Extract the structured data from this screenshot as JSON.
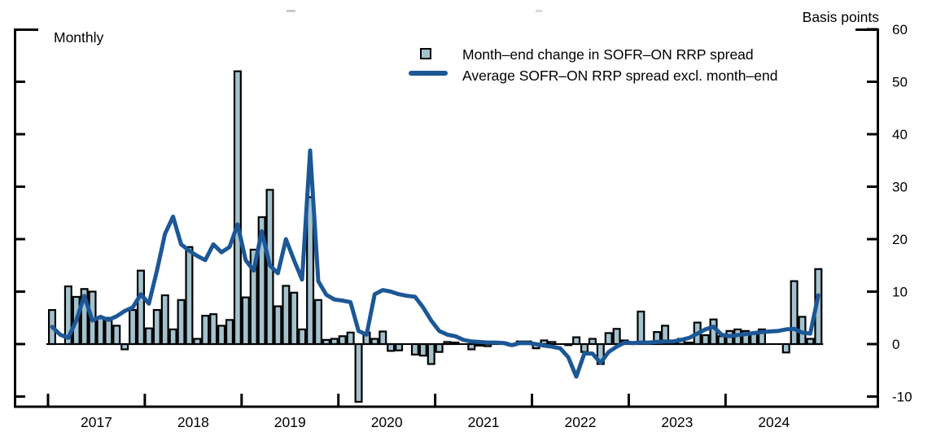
{
  "header": {
    "frequency_label": "Monthly",
    "axis_unit_label": "Basis points"
  },
  "legend": {
    "items": [
      {
        "marker": "bar-swatch",
        "label": "Month–end change in SOFR–ON RRP spread"
      },
      {
        "marker": "line-swatch",
        "label": "Average SOFR–ON RRP spread excl. month–end"
      }
    ]
  },
  "colors": {
    "bar_fill": "#a3c2ce",
    "outline": "#000000",
    "line": "#1c5796",
    "text": "#000000"
  },
  "chart_data": {
    "type": "bar+line",
    "x_unit": "month",
    "x_range": {
      "start": "2017-01",
      "end": "2024-12"
    },
    "x_tick_years": [
      "2017",
      "2018",
      "2019",
      "2020",
      "2021",
      "2022",
      "2023",
      "2024"
    ],
    "ylabel": "Basis points",
    "ylim": [
      -10,
      60
    ],
    "y_ticks": [
      60,
      50,
      40,
      30,
      20,
      10,
      0,
      -10
    ],
    "grid": false,
    "legend_position": "top-center",
    "series": [
      {
        "name": "Month–end change in SOFR–ON RRP spread",
        "type": "bar",
        "values": [
          6.5,
          0,
          11,
          9,
          10.5,
          10,
          5,
          5,
          3.5,
          -1,
          6.5,
          14,
          3,
          6.5,
          9.3,
          2.8,
          8.4,
          18.5,
          1,
          5.4,
          5.7,
          3.5,
          4.6,
          52,
          8.9,
          18,
          24.2,
          29.4,
          7.2,
          11.1,
          9.8,
          2.8,
          28,
          8.4,
          0.8,
          1.0,
          1.5,
          2.2,
          -11,
          2.2,
          1.0,
          2.4,
          -1.3,
          -1.2,
          0,
          -2.0,
          -2.2,
          -3.8,
          -1.5,
          0.4,
          0.3,
          0,
          -1.0,
          -0.3,
          -0.4,
          0.2,
          0.3,
          -0.3,
          0.5,
          0.5,
          -0.8,
          0.7,
          0.4,
          0,
          -0.2,
          1.3,
          -1.5,
          1.0,
          -3.8,
          2.1,
          2.9,
          0.7,
          0.3,
          6.2,
          0.3,
          2.3,
          3.5,
          0.2,
          1.0,
          0.3,
          4.1,
          1.7,
          4.7,
          1.5,
          2.5,
          2.8,
          2.5,
          2.0,
          2.8,
          0,
          0,
          -1.6,
          12.0,
          5.2,
          1.0,
          14.3
        ]
      },
      {
        "name": "Average SOFR–ON RRP spread excl. month–end",
        "type": "line",
        "values": [
          3.3,
          1.8,
          1.2,
          4.5,
          9.2,
          4.5,
          5.2,
          4.6,
          5.3,
          6.3,
          7.0,
          9.5,
          7.7,
          14.0,
          21.0,
          24.3,
          19.0,
          17.8,
          16.8,
          16.0,
          19.0,
          17.5,
          18.5,
          22.8,
          16.0,
          14.0,
          21.5,
          15.0,
          13.5,
          20.0,
          16.0,
          12.3,
          36.9,
          12.0,
          9.4,
          8.5,
          8.3,
          8.0,
          2.5,
          1.8,
          9.5,
          10.3,
          10.0,
          9.5,
          9.2,
          9.0,
          7.0,
          4.5,
          2.5,
          1.8,
          1.5,
          0.8,
          0.5,
          0.4,
          0.3,
          0.3,
          0.2,
          -0.2,
          0.2,
          0.2,
          0.0,
          -0.3,
          -0.5,
          -0.8,
          -2.5,
          -6.2,
          -1.8,
          -1.8,
          -3.6,
          -1.5,
          -0.5,
          0.3,
          0.2,
          0.3,
          0.3,
          0.4,
          0.5,
          0.5,
          0.8,
          1.2,
          2.0,
          2.8,
          3.3,
          1.8,
          1.5,
          1.7,
          1.9,
          2.1,
          2.3,
          2.4,
          2.5,
          2.8,
          2.9,
          2.2,
          2.0,
          9.3
        ]
      }
    ]
  }
}
